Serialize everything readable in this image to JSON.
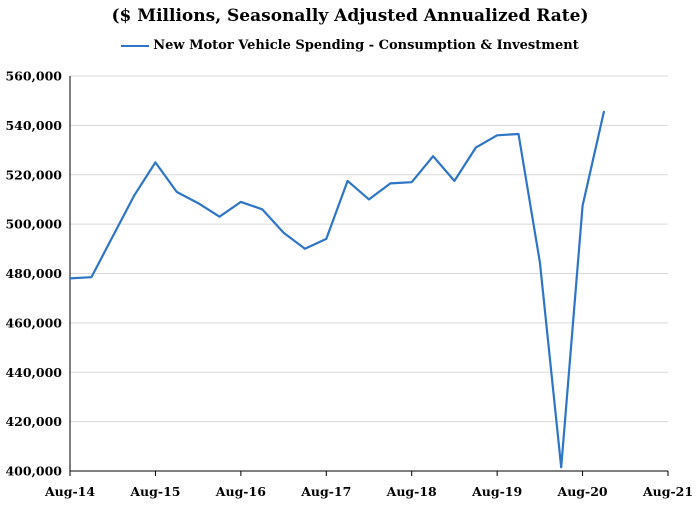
{
  "chart_data": {
    "type": "line",
    "title": "($ Millions, Seasonally Adjusted Annualized Rate)",
    "legend_position": "top-center",
    "series": [
      {
        "name": "New Motor Vehicle Spending - Consumption & Investment",
        "color": "#2e75c5",
        "points": [
          [
            "2014-08",
            478000
          ],
          [
            "2014-11",
            478500
          ],
          [
            "2015-02",
            495000
          ],
          [
            "2015-05",
            511500
          ],
          [
            "2015-08",
            525000
          ],
          [
            "2015-11",
            513000
          ],
          [
            "2016-02",
            508500
          ],
          [
            "2016-05",
            503000
          ],
          [
            "2016-08",
            509000
          ],
          [
            "2016-11",
            506000
          ],
          [
            "2017-02",
            496500
          ],
          [
            "2017-05",
            490000
          ],
          [
            "2017-08",
            494000
          ],
          [
            "2017-11",
            517500
          ],
          [
            "2018-02",
            510000
          ],
          [
            "2018-05",
            516500
          ],
          [
            "2018-08",
            517000
          ],
          [
            "2018-11",
            527500
          ],
          [
            "2019-02",
            517500
          ],
          [
            "2019-05",
            531000
          ],
          [
            "2019-08",
            536000
          ],
          [
            "2019-11",
            536500
          ],
          [
            "2020-02",
            484500
          ],
          [
            "2020-05",
            401500
          ],
          [
            "2020-08",
            507500
          ],
          [
            "2020-11",
            545500
          ]
        ]
      }
    ],
    "x_ticks": [
      "Aug-14",
      "Aug-15",
      "Aug-16",
      "Aug-17",
      "Aug-18",
      "Aug-19",
      "Aug-20",
      "Aug-21"
    ],
    "xlim": [
      "2014-08",
      "2021-08"
    ],
    "y_ticks": [
      "400,000",
      "420,000",
      "440,000",
      "460,000",
      "480,000",
      "500,000",
      "520,000",
      "540,000",
      "560,000"
    ],
    "ylim": [
      400000,
      560000
    ],
    "grid": "horizontal"
  }
}
